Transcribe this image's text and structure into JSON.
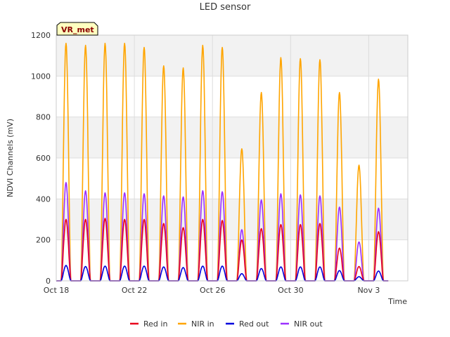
{
  "chart_data": {
    "type": "line",
    "title": "LED sensor",
    "xlabel": "Time",
    "ylabel": "NDVI Channels (mV)",
    "badge": "VR_met",
    "ylim": [
      0,
      1200
    ],
    "yticks": [
      0,
      200,
      400,
      600,
      800,
      1000,
      1200
    ],
    "xlim": [
      "2023-10-18",
      "2023-11-05"
    ],
    "xticks": [
      {
        "date": "2023-10-18",
        "label": "Oct 18"
      },
      {
        "date": "2023-10-22",
        "label": "Oct 22"
      },
      {
        "date": "2023-10-26",
        "label": "Oct 26"
      },
      {
        "date": "2023-10-30",
        "label": "Oct 30"
      },
      {
        "date": "2023-11-03",
        "label": "Nov 3"
      }
    ],
    "grid": true,
    "legend_position": "bottom",
    "series": [
      {
        "name": "Red in",
        "color": "#e8001c"
      },
      {
        "name": "NIR in",
        "color": "#ffa500"
      },
      {
        "name": "Red out",
        "color": "#0000dd"
      },
      {
        "name": "NIR out",
        "color": "#9b30ff"
      }
    ],
    "daily_peaks": [
      {
        "date": "2023-10-18",
        "red_in": 300,
        "nir_in": 1160,
        "red_out": 75,
        "nir_out": 480
      },
      {
        "date": "2023-10-19",
        "red_in": 300,
        "nir_in": 1150,
        "red_out": 70,
        "nir_out": 440
      },
      {
        "date": "2023-10-20",
        "red_in": 305,
        "nir_in": 1160,
        "red_out": 72,
        "nir_out": 430
      },
      {
        "date": "2023-10-21",
        "red_in": 300,
        "nir_in": 1160,
        "red_out": 72,
        "nir_out": 430
      },
      {
        "date": "2023-10-22",
        "red_in": 300,
        "nir_in": 1140,
        "red_out": 72,
        "nir_out": 425
      },
      {
        "date": "2023-10-23",
        "red_in": 280,
        "nir_in": 1050,
        "red_out": 68,
        "nir_out": 415
      },
      {
        "date": "2023-10-24",
        "red_in": 260,
        "nir_in": 1040,
        "red_out": 65,
        "nir_out": 410
      },
      {
        "date": "2023-10-25",
        "red_in": 300,
        "nir_in": 1150,
        "red_out": 72,
        "nir_out": 440
      },
      {
        "date": "2023-10-26",
        "red_in": 295,
        "nir_in": 1140,
        "red_out": 72,
        "nir_out": 435
      },
      {
        "date": "2023-10-27",
        "red_in": 200,
        "nir_in": 645,
        "red_out": 35,
        "nir_out": 250
      },
      {
        "date": "2023-10-28",
        "red_in": 255,
        "nir_in": 920,
        "red_out": 60,
        "nir_out": 395
      },
      {
        "date": "2023-10-29",
        "red_in": 275,
        "nir_in": 1090,
        "red_out": 68,
        "nir_out": 425
      },
      {
        "date": "2023-10-30",
        "red_in": 275,
        "nir_in": 1085,
        "red_out": 68,
        "nir_out": 420
      },
      {
        "date": "2023-10-31",
        "red_in": 280,
        "nir_in": 1080,
        "red_out": 68,
        "nir_out": 415
      },
      {
        "date": "2023-11-01",
        "red_in": 160,
        "nir_in": 920,
        "red_out": 50,
        "nir_out": 360
      },
      {
        "date": "2023-11-02",
        "red_in": 70,
        "nir_in": 565,
        "red_out": 20,
        "nir_out": 190
      },
      {
        "date": "2023-11-03",
        "red_in": 240,
        "nir_in": 985,
        "red_out": 48,
        "nir_out": 355
      }
    ]
  }
}
